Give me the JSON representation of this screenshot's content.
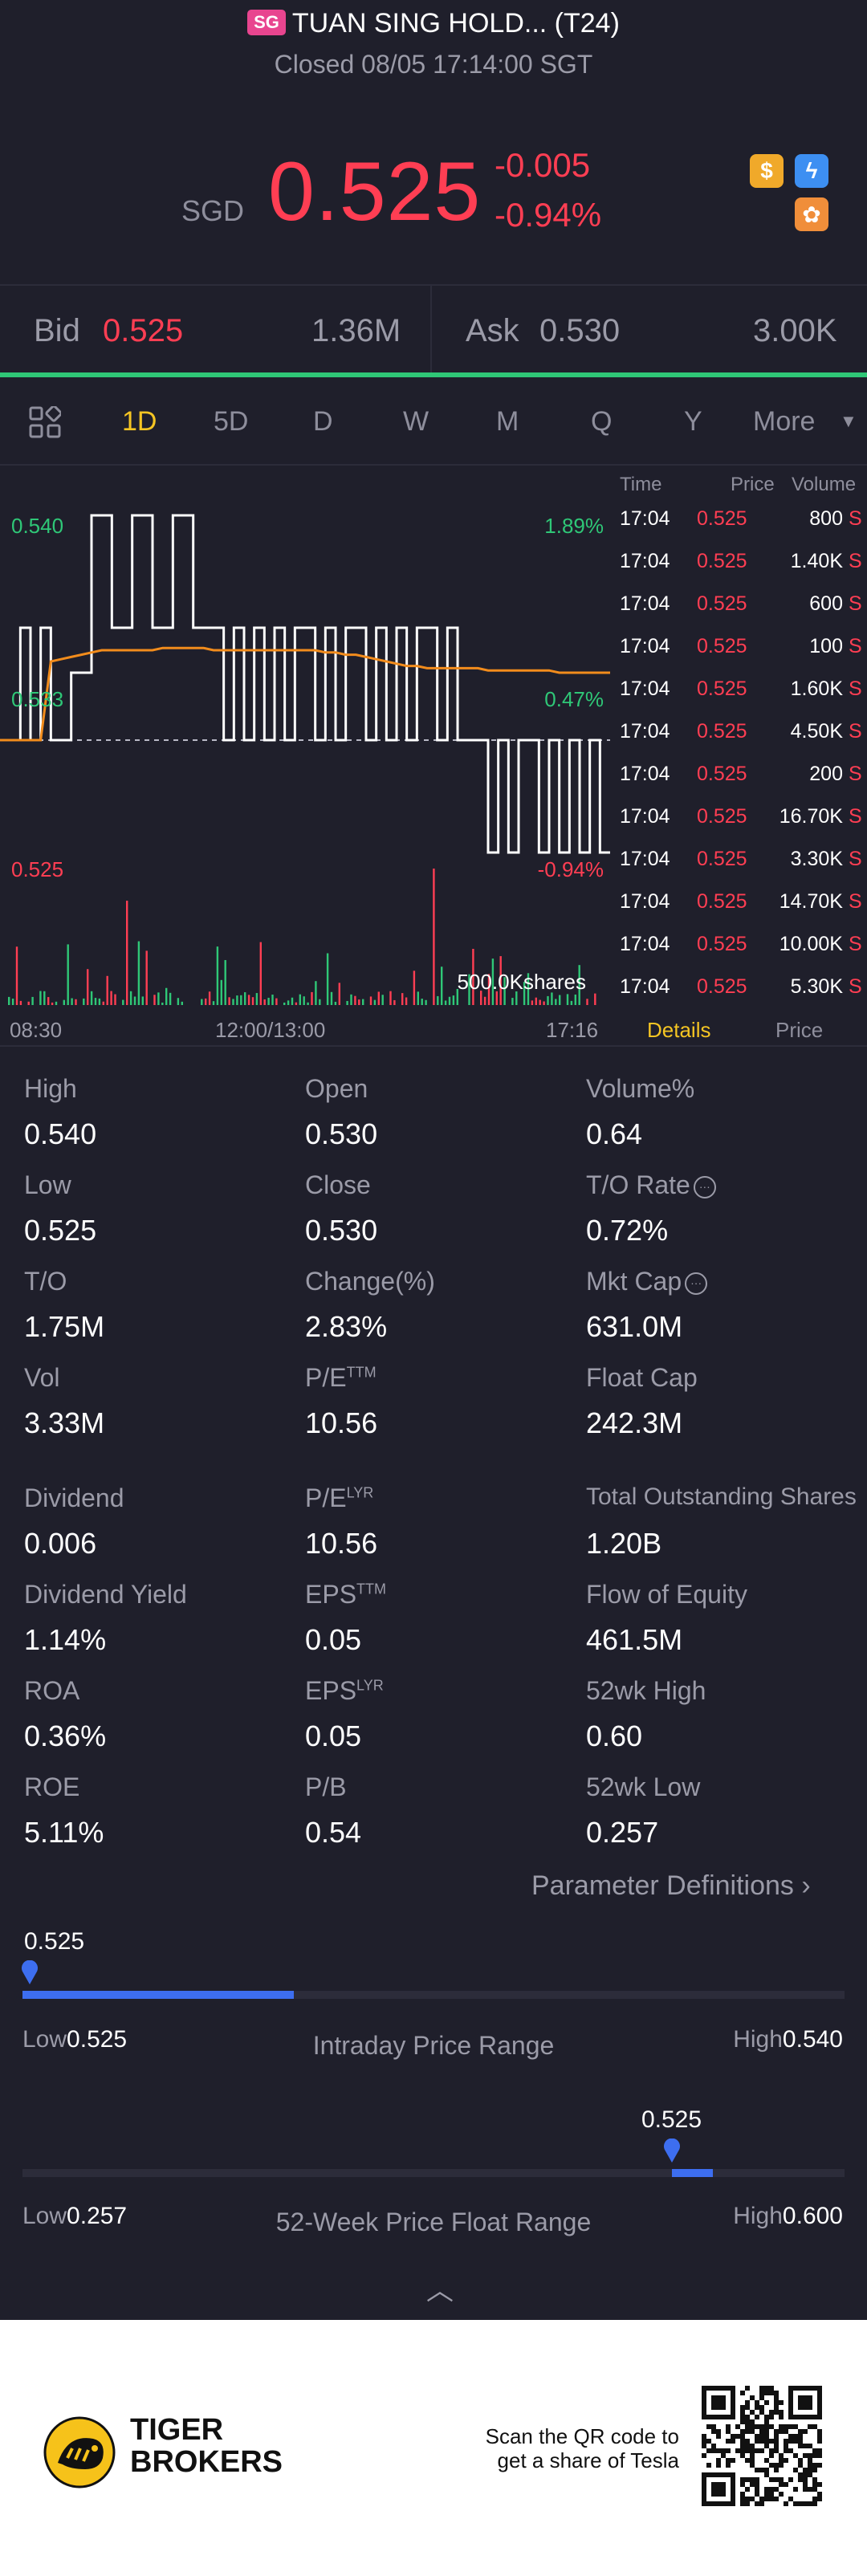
{
  "header": {
    "market_badge": "SG",
    "title": "TUAN SING HOLD... (T24)",
    "status": "Closed 08/05 17:14:00 SGT",
    "currency": "SGD",
    "price": "0.525",
    "change": "-0.005",
    "change_pct": "-0.94%",
    "icons": [
      "dollar-icon",
      "lightning-icon",
      "gear-icon"
    ]
  },
  "bidask": {
    "bid_label": "Bid",
    "bid_price": "0.525",
    "bid_volume": "1.36M",
    "ask_label": "Ask",
    "ask_price": "0.530",
    "ask_volume": "3.00K"
  },
  "tabs": {
    "items": [
      "1D",
      "5D",
      "D",
      "W",
      "M",
      "Q",
      "Y",
      "More"
    ],
    "active": "1D"
  },
  "chart_data": {
    "type": "line",
    "y_labels": {
      "top": "0.540",
      "mid": "0.533",
      "bottom": "0.525"
    },
    "pct_labels": {
      "top": "1.89%",
      "mid": "0.47%",
      "bottom": "-0.94%"
    },
    "volume_label": "500.0Kshares",
    "x_labels": [
      "08:30",
      "12:00/13:00",
      "17:16"
    ],
    "ylim": [
      0.525,
      0.54
    ],
    "reference_price": 0.53,
    "price_series": [
      0.53,
      0.53,
      0.535,
      0.53,
      0.535,
      0.53,
      0.53,
      0.533,
      0.533,
      0.54,
      0.54,
      0.535,
      0.535,
      0.54,
      0.54,
      0.535,
      0.535,
      0.54,
      0.54,
      0.535,
      0.535,
      0.535,
      0.53,
      0.535,
      0.53,
      0.535,
      0.53,
      0.535,
      0.53,
      0.535,
      0.535,
      0.53,
      0.535,
      0.53,
      0.535,
      0.535,
      0.53,
      0.535,
      0.53,
      0.535,
      0.53,
      0.535,
      0.535,
      0.53,
      0.535,
      0.53,
      0.53,
      0.53,
      0.525,
      0.53,
      0.525,
      0.53,
      0.53,
      0.525,
      0.53,
      0.525,
      0.53,
      0.525,
      0.53,
      0.525,
      0.525
    ],
    "avg_series": [
      0.53,
      0.53,
      0.53,
      0.53,
      0.53,
      0.5335,
      0.5336,
      0.5337,
      0.5338,
      0.5339,
      0.534,
      0.534,
      0.534,
      0.534,
      0.534,
      0.534,
      0.5341,
      0.5341,
      0.5341,
      0.5341,
      0.5341,
      0.534,
      0.534,
      0.534,
      0.534,
      0.534,
      0.534,
      0.534,
      0.534,
      0.534,
      0.534,
      0.534,
      0.5339,
      0.5339,
      0.5338,
      0.5338,
      0.5337,
      0.5336,
      0.5335,
      0.5334,
      0.5333,
      0.5333,
      0.5332,
      0.5332,
      0.5332,
      0.5332,
      0.5332,
      0.5332,
      0.5331,
      0.5331,
      0.5331,
      0.5331,
      0.5331,
      0.5331,
      0.5331,
      0.533,
      0.533,
      0.533,
      0.533,
      0.533,
      0.533
    ]
  },
  "ticks": {
    "headers": {
      "time": "Time",
      "price": "Price",
      "volume": "Volume"
    },
    "rows": [
      {
        "time": "17:04",
        "price": "0.525",
        "volume": "800",
        "side": "S"
      },
      {
        "time": "17:04",
        "price": "0.525",
        "volume": "1.40K",
        "side": "S"
      },
      {
        "time": "17:04",
        "price": "0.525",
        "volume": "600",
        "side": "S"
      },
      {
        "time": "17:04",
        "price": "0.525",
        "volume": "100",
        "side": "S"
      },
      {
        "time": "17:04",
        "price": "0.525",
        "volume": "1.60K",
        "side": "S"
      },
      {
        "time": "17:04",
        "price": "0.525",
        "volume": "4.50K",
        "side": "S"
      },
      {
        "time": "17:04",
        "price": "0.525",
        "volume": "200",
        "side": "S"
      },
      {
        "time": "17:04",
        "price": "0.525",
        "volume": "16.70K",
        "side": "S"
      },
      {
        "time": "17:04",
        "price": "0.525",
        "volume": "3.30K",
        "side": "S"
      },
      {
        "time": "17:04",
        "price": "0.525",
        "volume": "14.70K",
        "side": "S"
      },
      {
        "time": "17:04",
        "price": "0.525",
        "volume": "10.00K",
        "side": "S"
      },
      {
        "time": "17:04",
        "price": "0.525",
        "volume": "5.30K",
        "side": "S"
      }
    ],
    "tab_details": "Details",
    "tab_price": "Price"
  },
  "stats": {
    "high_label": "High",
    "high": "0.540",
    "open_label": "Open",
    "open": "0.530",
    "volpct_label": "Volume%",
    "volpct": "0.64",
    "low_label": "Low",
    "low": "0.525",
    "close_label": "Close",
    "close": "0.530",
    "torate_label": "T/O Rate",
    "torate": "0.72%",
    "to_label": "T/O",
    "to": "1.75M",
    "changepct_label": "Change(%)",
    "changepct": "2.83%",
    "mktcap_label": "Mkt Cap",
    "mktcap": "631.0M",
    "vol_label": "Vol",
    "vol": "3.33M",
    "pe_ttm_label": "P/E",
    "pe_ttm_sup": "TTM",
    "pe_ttm": "10.56",
    "floatcap_label": "Float Cap",
    "floatcap": "242.3M",
    "dividend_label": "Dividend",
    "dividend": "0.006",
    "pe_lyr_label": "P/E",
    "pe_lyr_sup": "LYR",
    "pe_lyr": "10.56",
    "shares_label": "Total Outstanding Shares",
    "shares": "1.20B",
    "divyield_label": "Dividend Yield",
    "divyield": "1.14%",
    "eps_ttm_label": "EPS",
    "eps_ttm_sup": "TTM",
    "eps_ttm": "0.05",
    "flow_label": "Flow of Equity",
    "flow": "461.5M",
    "roa_label": "ROA",
    "roa": "0.36%",
    "eps_lyr_label": "EPS",
    "eps_lyr_sup": "LYR",
    "eps_lyr": "0.05",
    "hi52_label": "52wk High",
    "hi52": "0.60",
    "roe_label": "ROE",
    "roe": "5.11%",
    "pb_label": "P/B",
    "pb": "0.54",
    "lo52_label": "52wk Low",
    "lo52": "0.257",
    "param_defs": "Parameter Definitions"
  },
  "ranges": {
    "intraday": {
      "current": "0.525",
      "low_label": "Low",
      "low": "0.525",
      "high_label": "High",
      "high": "0.540",
      "caption": "Intraday Price Range",
      "fill_fraction": 0.33,
      "marker_fraction": 0.0
    },
    "week52": {
      "current": "0.525",
      "low_label": "Low",
      "low": "0.257",
      "high_label": "High",
      "high": "0.600",
      "caption": "52-Week Price Float Range",
      "fill_start": 0.79,
      "fill_end": 0.84,
      "marker_fraction": 0.79
    }
  },
  "footer": {
    "brand_line1": "TIGER",
    "brand_line2": "BROKERS",
    "scan_line1": "Scan the QR code to",
    "scan_line2": "get a share of Tesla"
  }
}
